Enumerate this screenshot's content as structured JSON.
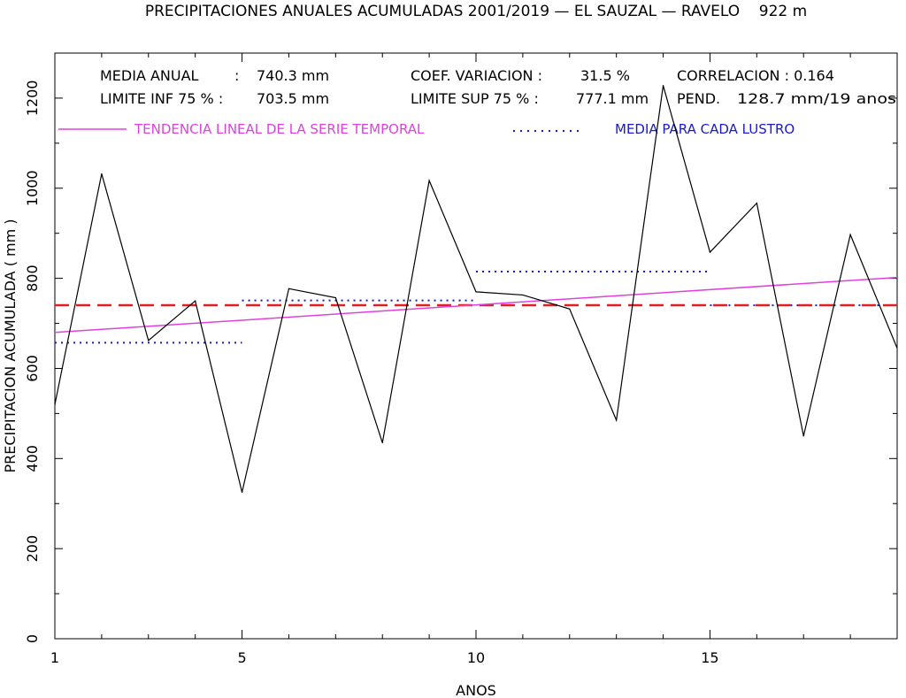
{
  "chart_data": {
    "type": "line",
    "title": "PRECIPITACIONES ANUALES ACUMULADAS 2001/2019 — EL SAUZAL — RAVELO    922 m",
    "xlabel": "ANOS",
    "ylabel": "PRECIPITACION ACUMULADA ( mm )",
    "xlim": [
      1,
      19
    ],
    "ylim": [
      0,
      1300
    ],
    "x_ticks": [
      1,
      5,
      10,
      15
    ],
    "y_ticks": [
      0,
      200,
      400,
      600,
      800,
      1000,
      1200
    ],
    "grid": false,
    "stats": {
      "row1": [
        {
          "label": "MEDIA ANUAL",
          "sep": ":",
          "value": "740.3 mm"
        },
        {
          "label": "COEF. VARIACION :",
          "value": "31.5 %"
        },
        {
          "label": "CORRELACION : 0.164"
        }
      ],
      "row2": [
        {
          "label": "LIMITE INF 75 % :",
          "value": "703.5 mm"
        },
        {
          "label": "LIMITE SUP 75 % :",
          "value": "777.1 mm"
        },
        {
          "label": "PEND.",
          "value": "128.7 mm/19 anos"
        }
      ]
    },
    "legend": [
      {
        "label": "TENDENCIA LINEAL DE LA SERIE TEMPORAL",
        "color": "#e040e0",
        "style": "solid"
      },
      {
        "label": "MEDIA PARA CADA LUSTRO",
        "color": "#1a1acc",
        "style": "dotted"
      }
    ],
    "series": [
      {
        "color": "#000000",
        "x": [
          1,
          2,
          3,
          4,
          5,
          6,
          7,
          8,
          9,
          10,
          11,
          12,
          13,
          14,
          15,
          16,
          17,
          18,
          19
        ],
        "y": [
          520,
          1032,
          662,
          750,
          325,
          777,
          757,
          435,
          1017,
          770,
          763,
          732,
          485,
          1228,
          858,
          967,
          450,
          897,
          645
        ]
      }
    ],
    "mean": {
      "value": 740.3,
      "color": "#e02020",
      "style": "dashed"
    },
    "trend": {
      "x": [
        1,
        19
      ],
      "y": [
        680,
        802
      ],
      "color": "#e040e0"
    },
    "lustro_means": {
      "color": "#1a1acc",
      "segments": [
        {
          "x": [
            1,
            5
          ],
          "y": 657
        },
        {
          "x": [
            5,
            10
          ],
          "y": 751
        },
        {
          "x": [
            10,
            15
          ],
          "y": 815
        },
        {
          "x": [
            15,
            19
          ],
          "y": 740
        }
      ]
    }
  }
}
